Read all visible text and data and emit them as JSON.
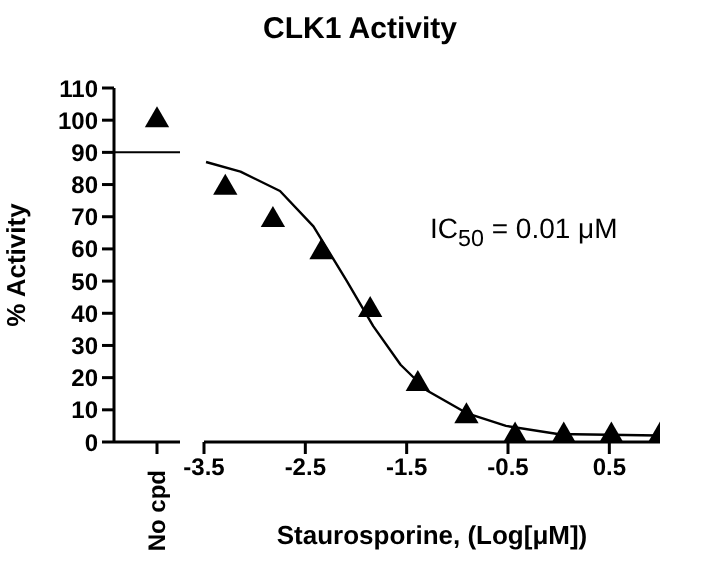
{
  "chart_data": [
    {
      "type": "scatter",
      "ylabel": "% Activity",
      "categories": [
        "No cpd"
      ],
      "values": [
        100
      ],
      "color": "#000000",
      "marker": "triangle",
      "ylim": [
        0,
        110
      ],
      "yticks": [
        0,
        10,
        20,
        30,
        40,
        50,
        60,
        70,
        80,
        90,
        100,
        110
      ],
      "ref_lines": [
        {
          "axis": "y",
          "value": 90,
          "color": "#000000"
        }
      ]
    },
    {
      "type": "scatter",
      "title": "CLK1 Activity",
      "xlabel": "Staurosporine, (Log[μM])",
      "annotations": [
        "IC$_{50}$ = 0.01 μM"
      ],
      "xlim": [
        -3.5,
        1.0
      ],
      "xticks": [
        -3.5,
        -2.5,
        -1.5,
        -0.5,
        0.5
      ],
      "ylim": [
        0,
        110
      ],
      "tick_labels": "x",
      "marker": "triangle",
      "series": [
        {
          "type": "scatter",
          "color": "#000000",
          "x": [
            -3.29,
            -2.82,
            -2.34,
            -1.86,
            -1.39,
            -0.91,
            -0.43,
            0.05,
            0.52,
            1.0
          ],
          "values": [
            79,
            69,
            59,
            41,
            18,
            8,
            2,
            2,
            2,
            2
          ]
        },
        {
          "type": "line",
          "color": "#000000",
          "marker": "none",
          "x": [
            -3.48,
            -3.14,
            -2.75,
            -2.42,
            -2.09,
            -1.83,
            -1.56,
            -1.3,
            -0.91,
            -0.52,
            -0.01,
            0.98
          ],
          "values": [
            87,
            84,
            78,
            67,
            50,
            36,
            24,
            16,
            9,
            5,
            2.5,
            2
          ]
        }
      ]
    }
  ]
}
